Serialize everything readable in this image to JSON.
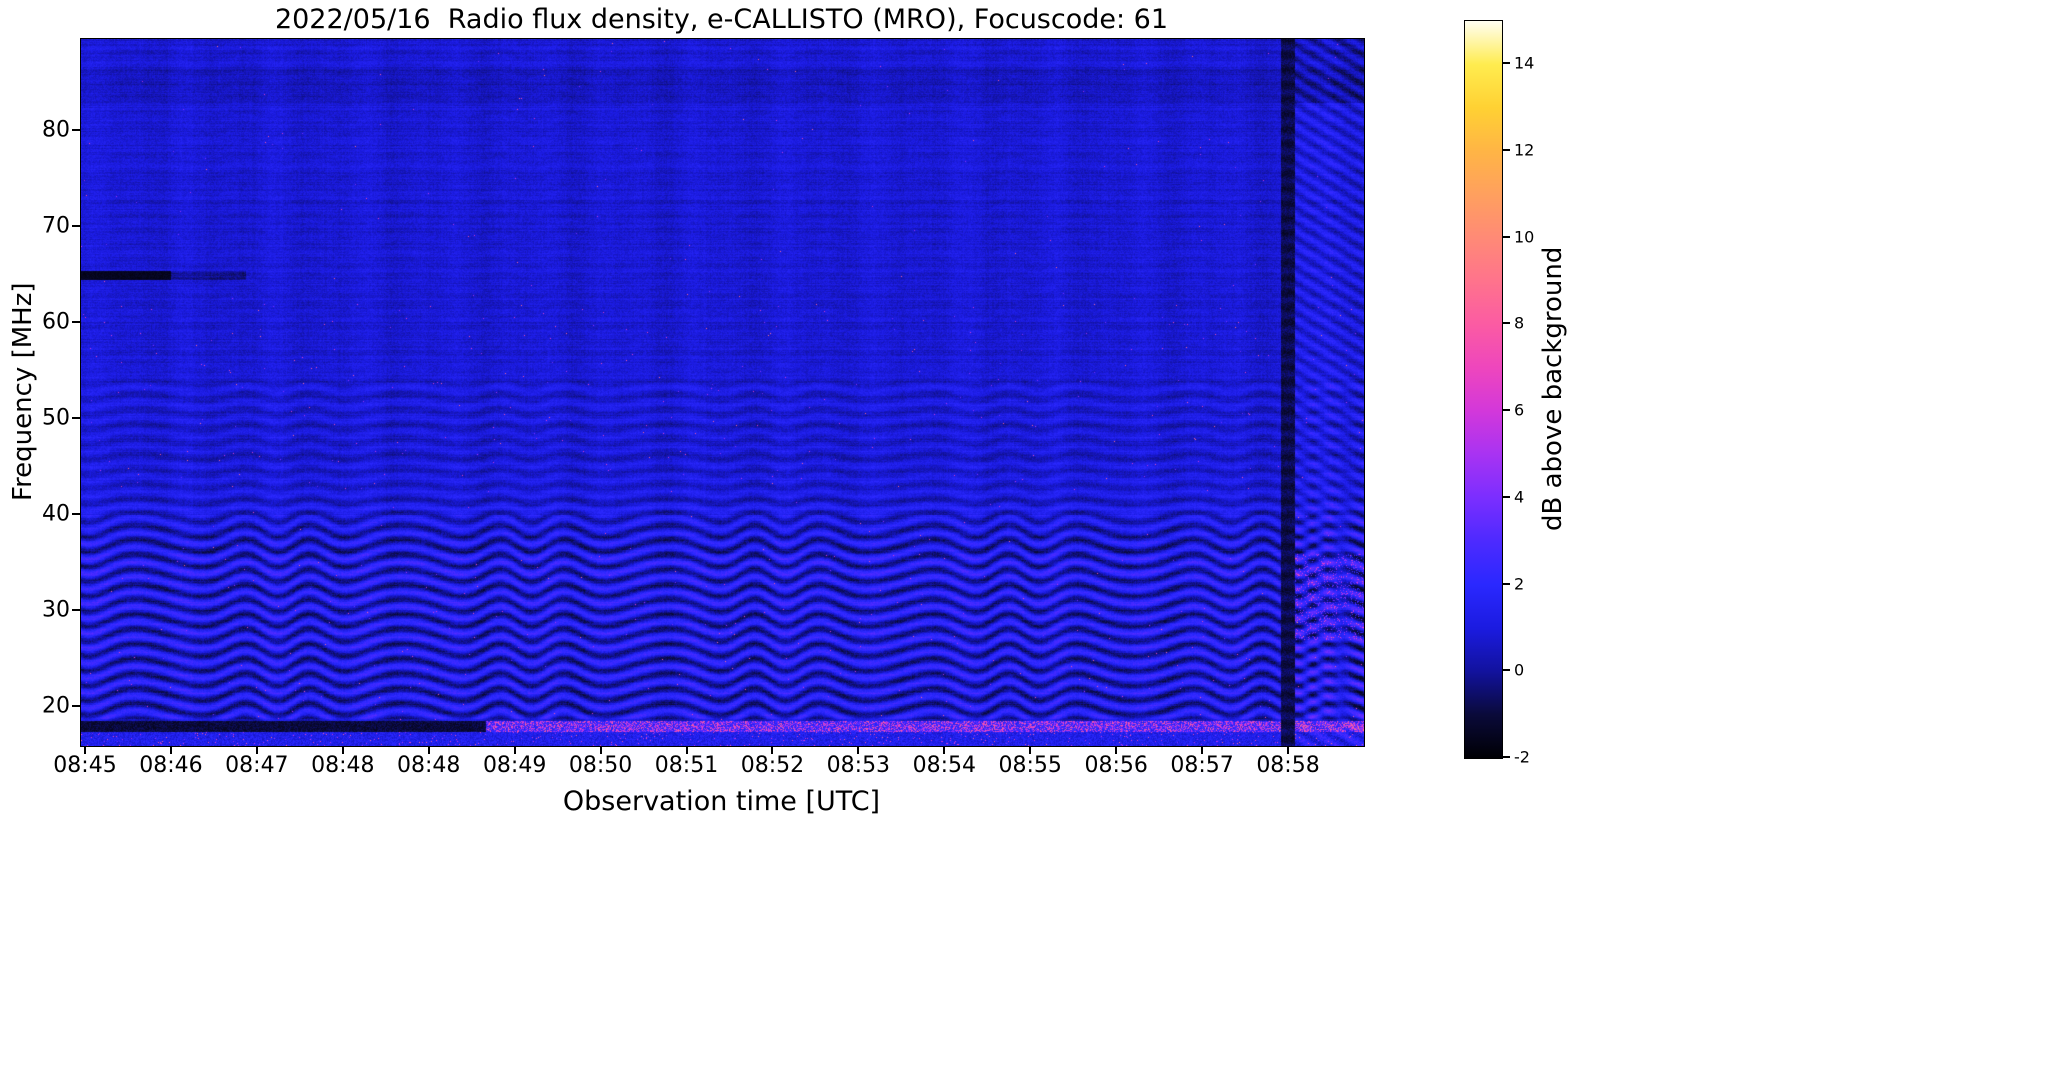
{
  "figure": {
    "title": "2022/05/16  Radio flux density, e-CALLISTO (MRO), Focuscode: 61",
    "xlabel": "Observation time [UTC]",
    "ylabel": "Frequency [MHz]",
    "colorbar_label": "dB above background"
  },
  "chart_data": {
    "type": "heatmap",
    "title": "2022/05/16  Radio flux density, e-CALLISTO (MRO), Focuscode: 61",
    "xlabel": "Observation time [UTC]",
    "ylabel": "Frequency [MHz]",
    "colorbar_label": "dB above background",
    "x_ticks": [
      "08:45",
      "08:46",
      "08:47",
      "08:48",
      "08:48",
      "08:49",
      "08:50",
      "08:51",
      "08:52",
      "08:53",
      "08:54",
      "08:55",
      "08:56",
      "08:57",
      "08:58"
    ],
    "y_ticks": [
      20,
      30,
      40,
      50,
      60,
      70,
      80
    ],
    "colorbar_ticks": [
      -2,
      0,
      2,
      4,
      6,
      8,
      10,
      12,
      14
    ],
    "freq_range_mhz": [
      15.9,
      89.6
    ],
    "time_range_utc": [
      "08:45",
      "08:59"
    ],
    "value_range_db": [
      -2,
      15
    ],
    "legend": "off",
    "grid": "off",
    "colormap_stops": [
      [
        0.0,
        "#000004"
      ],
      [
        0.059,
        "#0a0a3a"
      ],
      [
        0.118,
        "#12129e"
      ],
      [
        0.176,
        "#1b1be0"
      ],
      [
        0.235,
        "#2a28ff"
      ],
      [
        0.294,
        "#4d2aff"
      ],
      [
        0.353,
        "#7b2eff"
      ],
      [
        0.412,
        "#a833f2"
      ],
      [
        0.471,
        "#d338da"
      ],
      [
        0.529,
        "#ee46bd"
      ],
      [
        0.588,
        "#fb5ba3"
      ],
      [
        0.647,
        "#ff738c"
      ],
      [
        0.706,
        "#ff8a76"
      ],
      [
        0.765,
        "#ffa05e"
      ],
      [
        0.824,
        "#ffb545"
      ],
      [
        0.882,
        "#ffd133"
      ],
      [
        0.941,
        "#ffec4f"
      ],
      [
        1.0,
        "#fffef2"
      ]
    ],
    "features": [
      {
        "name": "quiet-background",
        "desc": "Dark blue background around 0-2 dB over most of the band"
      },
      {
        "name": "ionospheric-fringes",
        "desc": "Strong wavy interference fringe bands below ~36 MHz, weaker fringes 36-54 MHz"
      },
      {
        "name": "dark-band-high-freq",
        "desc": "Darker horizontal band near 83-86 MHz across full duration"
      },
      {
        "name": "dark-streak-65mhz",
        "desc": "Black horizontal streak near 65 MHz at the very start (before ~08:45:10)"
      },
      {
        "name": "bright-bottom-row",
        "desc": "Speckled bright pink/magenta row near 18 MHz from ~08:49 onward; same row dark before 08:49"
      },
      {
        "name": "rfi-speckles",
        "desc": "Scattered bright pink point-like bursts, mainly 43-62 MHz and below 36 MHz"
      },
      {
        "name": "disturbed-column-0858",
        "desc": "Dark vertical lane just after 08:58 followed by a disturbed brighter region with pink patches near 28-35 MHz to the right edge"
      }
    ]
  }
}
